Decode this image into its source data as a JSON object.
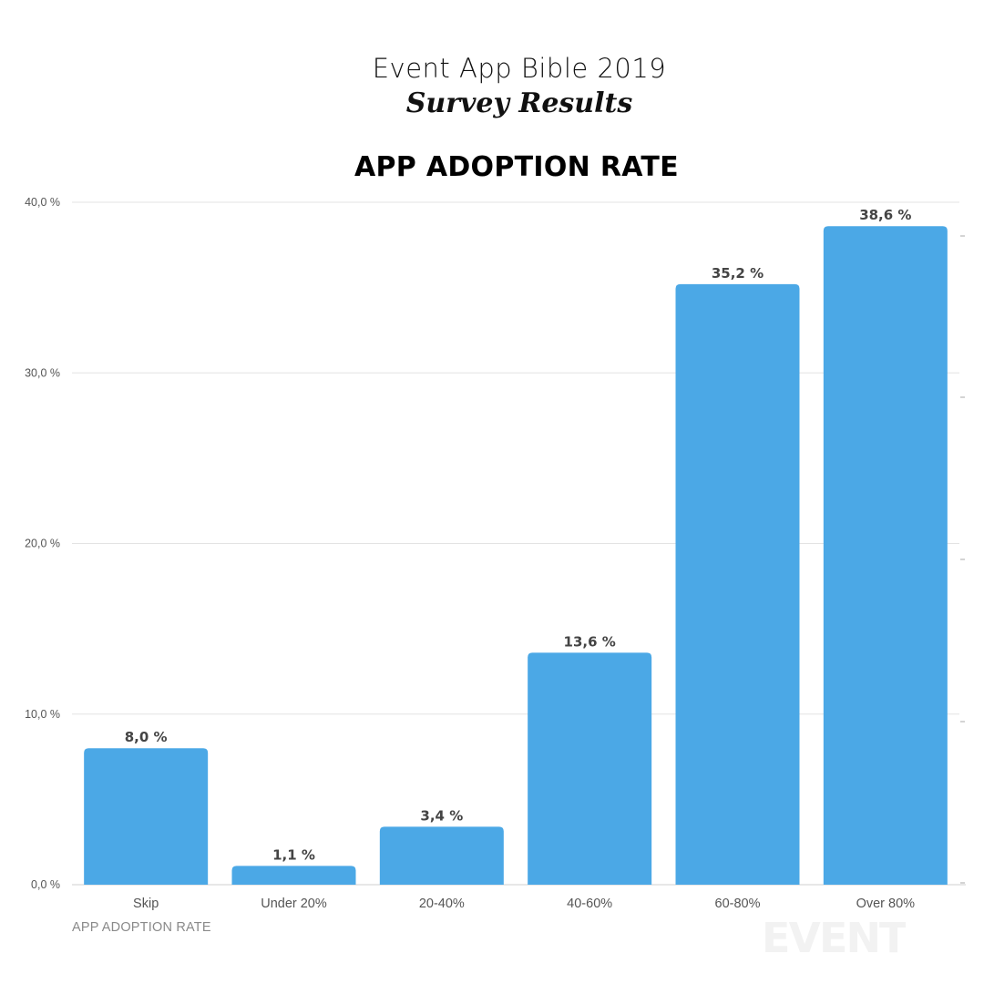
{
  "header": {
    "title": "Event App Bible 2019",
    "subtitle": "Survey Results"
  },
  "footer": {
    "axis_caption": "APP ADOPTION RATE"
  },
  "watermark": {
    "text": "EVENT"
  },
  "colors": {
    "bar": "#4BA8E6",
    "grid": "#e3e3e3",
    "tick_text": "#555555",
    "data_label": "#444444",
    "category_text": "#555555"
  },
  "chart_data": {
    "type": "bar",
    "title": "APP ADOPTION RATE",
    "xlabel": "APP ADOPTION RATE",
    "ylabel": "",
    "categories": [
      "Skip",
      "Under 20%",
      "20-40%",
      "40-60%",
      "60-80%",
      "Over 80%"
    ],
    "values": [
      8.0,
      1.1,
      3.4,
      13.6,
      35.2,
      38.6
    ],
    "data_labels": [
      "8,0 %",
      "1,1 %",
      "3,4 %",
      "13,6 %",
      "35,2 %",
      "38,6 %"
    ],
    "yticks": [
      0,
      10,
      20,
      30,
      40
    ],
    "ytick_labels": [
      "0,0 %",
      "10,0 %",
      "20,0 %",
      "30,0 %",
      "40,0 %"
    ],
    "ylim": [
      0,
      40
    ],
    "grid": true,
    "legend": "none"
  }
}
